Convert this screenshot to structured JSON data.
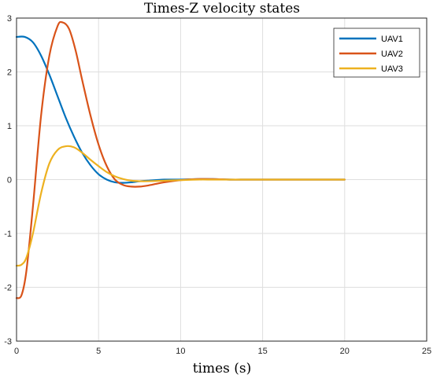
{
  "chart_data": {
    "type": "line",
    "title": "Times-Z velocity states",
    "xlabel": "times (s)",
    "ylabel": "",
    "xlim": [
      0,
      25
    ],
    "ylim": [
      -3,
      3
    ],
    "xticks": [
      0,
      5,
      10,
      15,
      20,
      25
    ],
    "yticks": [
      -3,
      -2,
      -1,
      0,
      1,
      2,
      3
    ],
    "grid": true,
    "legend_position": "top-right",
    "series": [
      {
        "name": "UAV1",
        "color": "#0072BD",
        "x": [
          0,
          0.5,
          1,
          1.5,
          2,
          2.5,
          3,
          3.5,
          4,
          4.5,
          5,
          5.5,
          6,
          6.5,
          7,
          7.5,
          8,
          9,
          10,
          11,
          12,
          13,
          14,
          15,
          16,
          17,
          18,
          19,
          20
        ],
        "y": [
          2.65,
          2.65,
          2.55,
          2.3,
          1.95,
          1.55,
          1.15,
          0.8,
          0.5,
          0.27,
          0.1,
          0.0,
          -0.05,
          -0.06,
          -0.05,
          -0.03,
          -0.02,
          0.0,
          0.0,
          0.01,
          0.01,
          0.0,
          0.0,
          0.0,
          0.0,
          0.0,
          0.0,
          0.0,
          0.0
        ]
      },
      {
        "name": "UAV2",
        "color": "#D95319",
        "x": [
          0,
          0.3,
          0.6,
          1,
          1.5,
          2,
          2.5,
          2.8,
          3.2,
          3.6,
          4,
          4.5,
          5,
          5.5,
          6,
          6.5,
          7,
          7.5,
          8,
          8.5,
          9,
          10,
          11,
          12,
          13,
          14,
          15,
          16,
          17,
          18,
          19,
          20
        ],
        "y": [
          -2.2,
          -2.15,
          -1.7,
          -0.5,
          1.2,
          2.3,
          2.85,
          2.92,
          2.8,
          2.4,
          1.85,
          1.2,
          0.65,
          0.25,
          0.0,
          -0.1,
          -0.13,
          -0.13,
          -0.11,
          -0.08,
          -0.05,
          -0.01,
          0.01,
          0.01,
          0.0,
          0.0,
          0.0,
          0.0,
          0.0,
          0.0,
          0.0,
          0.0
        ]
      },
      {
        "name": "UAV3",
        "color": "#EDB120",
        "x": [
          0,
          0.3,
          0.6,
          1,
          1.5,
          2,
          2.5,
          3,
          3.5,
          4,
          4.5,
          5,
          5.5,
          6,
          6.5,
          7,
          7.5,
          8,
          9,
          10,
          11,
          12,
          13,
          14,
          15,
          16,
          17,
          18,
          19,
          20
        ],
        "y": [
          -1.6,
          -1.58,
          -1.45,
          -1.0,
          -0.25,
          0.3,
          0.55,
          0.62,
          0.6,
          0.5,
          0.37,
          0.25,
          0.14,
          0.06,
          0.01,
          -0.02,
          -0.03,
          -0.03,
          -0.02,
          -0.01,
          0.0,
          0.0,
          0.0,
          0.0,
          0.0,
          0.0,
          0.0,
          0.0,
          0.0,
          0.0
        ]
      }
    ]
  }
}
